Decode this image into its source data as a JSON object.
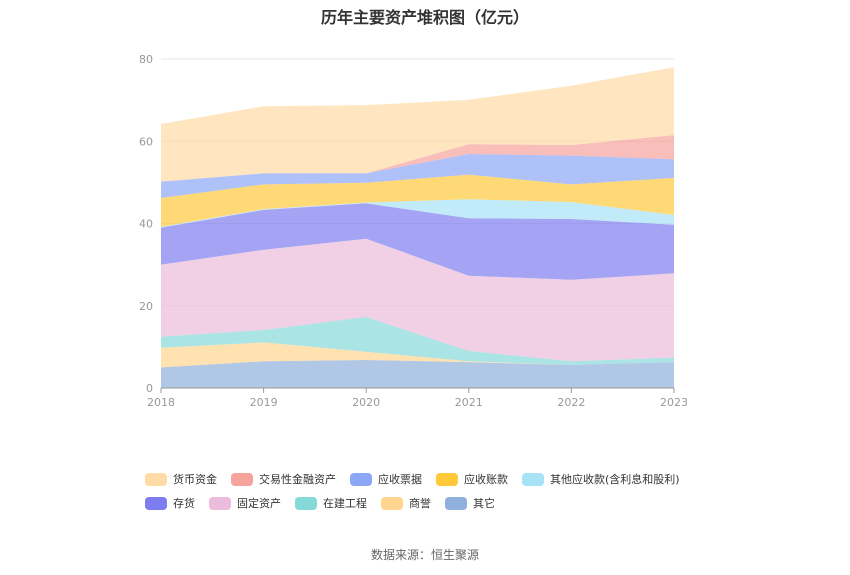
{
  "chart_data": {
    "type": "area",
    "stacked": true,
    "title": "历年主要资产堆积图（亿元）",
    "x": [
      "2018",
      "2019",
      "2020",
      "2021",
      "2022",
      "2023"
    ],
    "ylim": [
      0,
      80
    ],
    "yticks": [
      "0",
      "20",
      "40",
      "60",
      "80"
    ],
    "grid": "horizontal",
    "legend_position": "bottom",
    "series": [
      {
        "name": "其它",
        "color": "#8fb0dc",
        "values": [
          5.0,
          6.5,
          6.8,
          6.3,
          5.6,
          6.3
        ]
      },
      {
        "name": "商誉",
        "color": "#ffd58f",
        "values": [
          4.8,
          4.6,
          2.0,
          0.2,
          0.0,
          0.0
        ]
      },
      {
        "name": "在建工程",
        "color": "#86d9d9",
        "values": [
          2.7,
          3.0,
          8.5,
          2.5,
          0.9,
          1.1
        ]
      },
      {
        "name": "固定资产",
        "color": "#ebbcdc",
        "values": [
          17.5,
          19.5,
          19.0,
          18.3,
          19.8,
          20.5
        ]
      },
      {
        "name": "存货",
        "color": "#7d7cf0",
        "values": [
          9.0,
          9.7,
          8.6,
          14.0,
          14.8,
          11.8
        ]
      },
      {
        "name": "其他应收款(含利息和股利)",
        "color": "#a8e2f7",
        "values": [
          0.2,
          0.2,
          0.2,
          4.6,
          4.1,
          2.4
        ]
      },
      {
        "name": "应收账款",
        "color": "#ffc93a",
        "values": [
          7.0,
          6.0,
          4.8,
          6.0,
          4.3,
          9.0
        ]
      },
      {
        "name": "应收票据",
        "color": "#8ca7f5",
        "values": [
          4.0,
          2.7,
          2.3,
          5.0,
          7.0,
          4.5
        ]
      },
      {
        "name": "交易性金融资产",
        "color": "#f6a39c",
        "values": [
          0.0,
          0.0,
          0.0,
          2.4,
          2.6,
          5.9
        ]
      },
      {
        "name": "货币资金",
        "color": "#ffdca6",
        "values": [
          14.0,
          16.3,
          16.6,
          10.8,
          14.4,
          16.5
        ]
      }
    ],
    "legend_order": [
      "货币资金",
      "交易性金融资产",
      "应收票据",
      "应收账款",
      "其他应收款(含利息和股利)",
      "存货",
      "固定资产",
      "在建工程",
      "商誉",
      "其它"
    ]
  },
  "source_note": "数据来源：恒生聚源"
}
